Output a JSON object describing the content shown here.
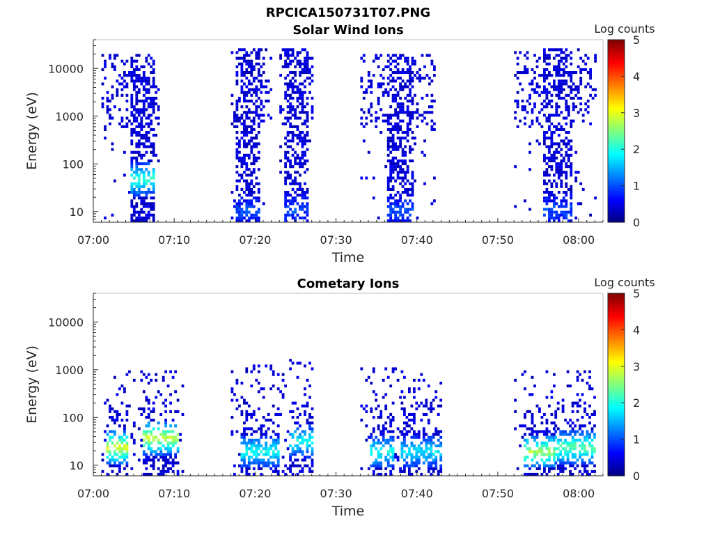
{
  "figure_title": "RPCICA150731T07.PNG",
  "chart_data": [
    {
      "type": "heatmap",
      "title": "Solar Wind Ions",
      "xlabel": "Time",
      "ylabel": "Energy (eV)",
      "x_range": [
        "07:00",
        "08:03"
      ],
      "x_ticks": [
        "07:00",
        "07:10",
        "07:20",
        "07:30",
        "07:40",
        "07:50",
        "08:00"
      ],
      "y_scale": "log",
      "y_range": [
        6,
        40000
      ],
      "y_ticks": [
        "10",
        "100",
        "1000",
        "10000"
      ],
      "colorbar": {
        "label": "Log counts",
        "ticks": [
          "0",
          "1",
          "2",
          "3",
          "4",
          "5"
        ],
        "range": [
          0,
          5
        ],
        "colormap": "jet"
      },
      "bursts": [
        {
          "start": "07:01",
          "end": "07:08",
          "core_start": "07:04.5",
          "core_end": "07:07.5",
          "max_energy": 20000,
          "peak_energy": 45,
          "peak_log_counts": 2
        },
        {
          "start": "07:17",
          "end": "07:22",
          "core_start": "07:17.5",
          "core_end": "07:20.5",
          "max_energy": 25000,
          "peak_energy": 10,
          "peak_log_counts": 0.8
        },
        {
          "start": "07:23",
          "end": "07:27",
          "core_start": "07:23.5",
          "core_end": "07:26.5",
          "max_energy": 25000,
          "peak_energy": 10,
          "peak_log_counts": 0.8
        },
        {
          "start": "07:33",
          "end": "07:42",
          "core_start": "07:36",
          "core_end": "07:39.5",
          "max_energy": 20000,
          "peak_energy": 10,
          "peak_log_counts": 0.8
        },
        {
          "start": "07:52",
          "end": "08:02",
          "core_start": "07:55.5",
          "core_end": "07:59",
          "max_energy": 25000,
          "peak_energy": 10,
          "peak_log_counts": 0.8
        }
      ],
      "grid": false
    },
    {
      "type": "heatmap",
      "title": "Cometary Ions",
      "xlabel": "Time",
      "ylabel": "Energy (eV)",
      "x_range": [
        "07:00",
        "08:03"
      ],
      "x_ticks": [
        "07:00",
        "07:10",
        "07:20",
        "07:30",
        "07:40",
        "07:50",
        "08:00"
      ],
      "y_scale": "log",
      "y_range": [
        6,
        40000
      ],
      "y_ticks": [
        "10",
        "100",
        "1000",
        "10000"
      ],
      "colorbar": {
        "label": "Log counts",
        "ticks": [
          "0",
          "1",
          "2",
          "3",
          "4",
          "5"
        ],
        "range": [
          0,
          5
        ],
        "colormap": "jet"
      },
      "bursts": [
        {
          "start": "07:01",
          "end": "07:05",
          "core_start": "07:01.5",
          "core_end": "07:04",
          "max_energy": 900,
          "peak_energy": 22,
          "peak_log_counts": 2.8
        },
        {
          "start": "07:05.5",
          "end": "07:11",
          "core_start": "07:06",
          "core_end": "07:10.5",
          "max_energy": 900,
          "peak_energy": 35,
          "peak_log_counts": 2.7
        },
        {
          "start": "07:17",
          "end": "07:23",
          "core_start": "07:18",
          "core_end": "07:23",
          "max_energy": 1200,
          "peak_energy": 18,
          "peak_log_counts": 1.8
        },
        {
          "start": "07:23",
          "end": "07:27",
          "core_start": "07:24",
          "core_end": "07:27",
          "max_energy": 1500,
          "peak_energy": 30,
          "peak_log_counts": 1.8
        },
        {
          "start": "07:33",
          "end": "07:38",
          "core_start": "07:34",
          "core_end": "07:37",
          "max_energy": 1000,
          "peak_energy": 18,
          "peak_log_counts": 1.8
        },
        {
          "start": "07:38",
          "end": "07:43",
          "core_start": "07:38",
          "core_end": "07:43",
          "max_energy": 900,
          "peak_energy": 18,
          "peak_log_counts": 1.6
        },
        {
          "start": "07:52",
          "end": "07:57",
          "core_start": "07:53",
          "core_end": "07:57",
          "max_energy": 900,
          "peak_energy": 18,
          "peak_log_counts": 2.5
        },
        {
          "start": "07:57",
          "end": "08:02",
          "core_start": "07:57",
          "core_end": "08:02",
          "max_energy": 900,
          "peak_energy": 22,
          "peak_log_counts": 2.2
        }
      ],
      "grid": false
    }
  ]
}
